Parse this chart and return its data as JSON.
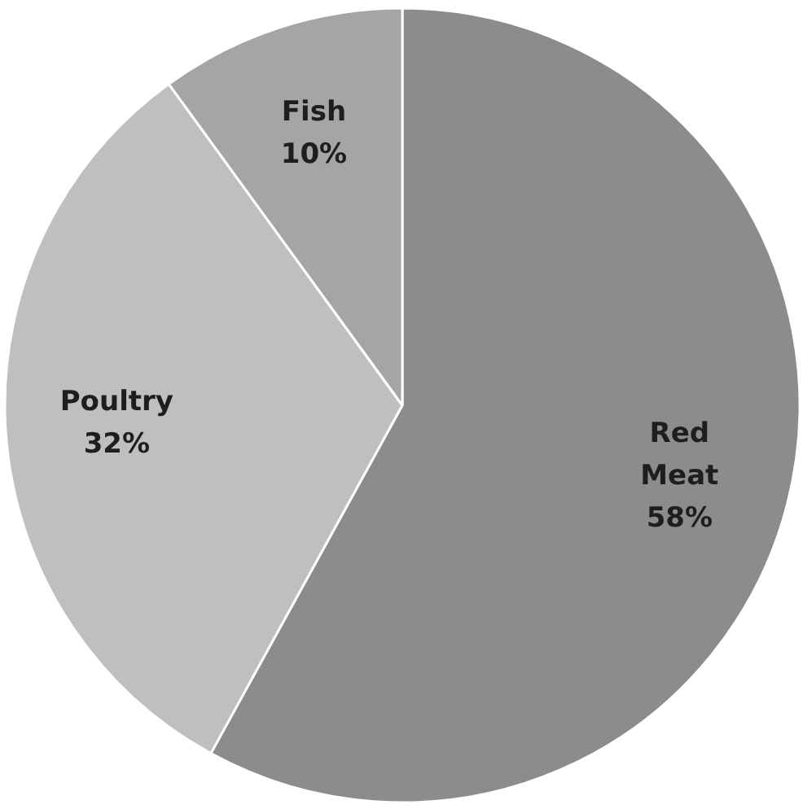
{
  "chart_data": {
    "type": "pie",
    "categories": [
      "Red Meat",
      "Poultry",
      "Fish"
    ],
    "values": [
      58,
      32,
      10
    ],
    "colors": [
      "#8c8c8c",
      "#bfbfbf",
      "#a5a5a5"
    ],
    "value_labels": [
      "58%",
      "32%",
      "10%"
    ]
  }
}
